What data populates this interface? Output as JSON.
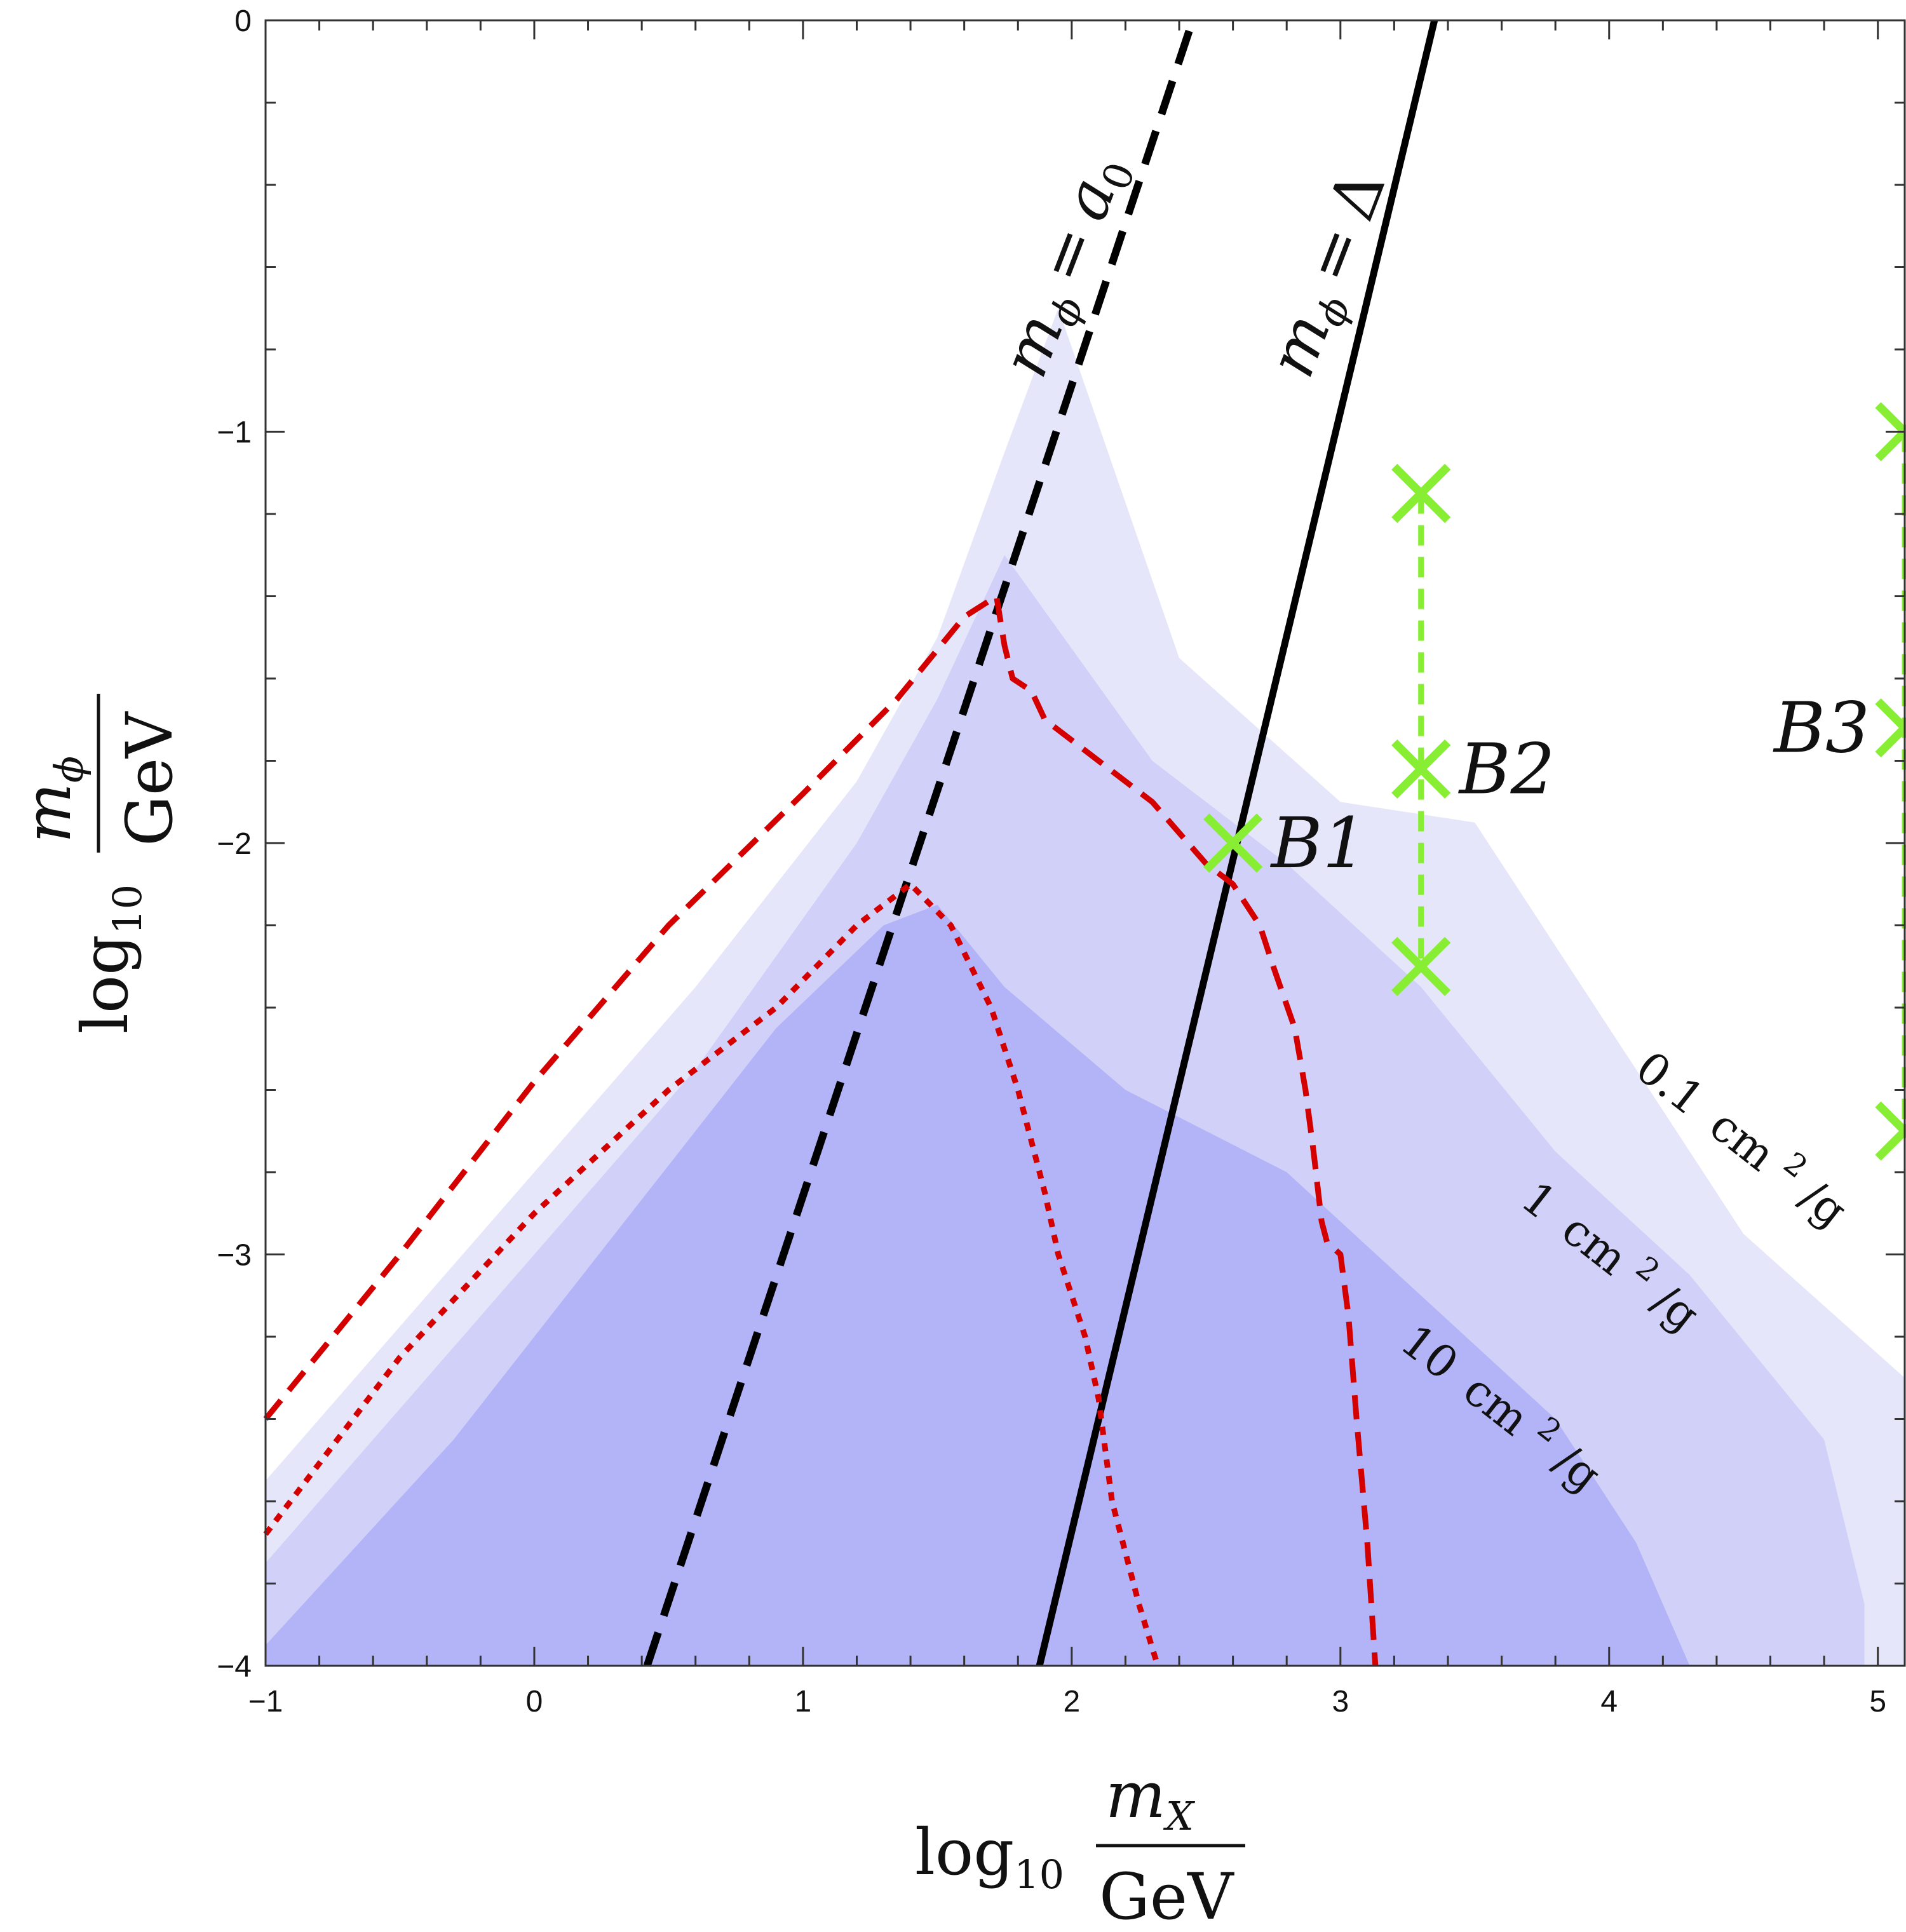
{
  "chart_data": {
    "type": "line",
    "x_axis": {
      "label_prefix": "log",
      "label_sub": "10",
      "label_numerator_main": "m",
      "label_numerator_sub": "X",
      "label_denominator": "GeV",
      "range": [
        -1,
        5.1
      ],
      "ticks": [
        -1,
        0,
        1,
        2,
        3,
        4,
        5
      ],
      "tick_labels": [
        "−1",
        "0",
        "1",
        "2",
        "3",
        "4",
        "5"
      ]
    },
    "y_axis": {
      "label_prefix": "log",
      "label_sub": "10",
      "label_numerator_main": "m",
      "label_numerator_sub": "ϕ",
      "label_denominator": "GeV",
      "range": [
        -4,
        0
      ],
      "ticks": [
        -4,
        -3,
        -2,
        -1,
        0
      ],
      "tick_labels": [
        "−4",
        "−3",
        "−2",
        "−1",
        "0"
      ]
    },
    "grid": false,
    "colors": {
      "region_01": "#e6e6fb",
      "region_1": "#d0d0f8",
      "region_10": "#b3b3f8",
      "red_curves": "#d40000",
      "black_lines": "#000000",
      "benchmarks": "#88ee33"
    },
    "regions": [
      {
        "label_value": "0.1",
        "label_unit": "cm",
        "label_exp": "2",
        "label_tail": "/g",
        "boundary": [
          [
            -1,
            -3.55
          ],
          [
            -0.2,
            -2.95
          ],
          [
            0.6,
            -2.35
          ],
          [
            1.2,
            -1.85
          ],
          [
            1.5,
            -1.5
          ],
          [
            1.75,
            -1.05
          ],
          [
            1.95,
            -0.7
          ],
          [
            2.4,
            -1.55
          ],
          [
            3.0,
            -1.9
          ],
          [
            3.5,
            -1.95
          ],
          [
            4.0,
            -2.45
          ],
          [
            4.5,
            -2.95
          ],
          [
            5.1,
            -3.3
          ],
          [
            5.1,
            -4
          ],
          [
            -1,
            -4
          ]
        ]
      },
      {
        "label_value": "1",
        "label_unit": "cm",
        "label_exp": "2",
        "label_tail": "/g",
        "boundary": [
          [
            -1,
            -3.75
          ],
          [
            -0.2,
            -3.15
          ],
          [
            0.6,
            -2.55
          ],
          [
            1.2,
            -2.0
          ],
          [
            1.5,
            -1.65
          ],
          [
            1.75,
            -1.3
          ],
          [
            2.3,
            -1.8
          ],
          [
            2.8,
            -2.05
          ],
          [
            3.3,
            -2.35
          ],
          [
            3.8,
            -2.75
          ],
          [
            4.3,
            -3.05
          ],
          [
            4.8,
            -3.45
          ],
          [
            4.95,
            -3.85
          ],
          [
            4.95,
            -4
          ],
          [
            -1,
            -4
          ]
        ]
      },
      {
        "label_value": "10",
        "label_unit": "cm",
        "label_exp": "2",
        "label_tail": "/g",
        "boundary": [
          [
            -1,
            -3.95
          ],
          [
            -0.3,
            -3.45
          ],
          [
            0.3,
            -2.95
          ],
          [
            0.9,
            -2.45
          ],
          [
            1.3,
            -2.2
          ],
          [
            1.5,
            -2.15
          ],
          [
            1.75,
            -2.35
          ],
          [
            2.2,
            -2.6
          ],
          [
            2.8,
            -2.8
          ],
          [
            3.3,
            -3.1
          ],
          [
            3.8,
            -3.4
          ],
          [
            4.1,
            -3.7
          ],
          [
            4.3,
            -4.0
          ],
          [
            -1,
            -4
          ]
        ]
      }
    ],
    "series": [
      {
        "name": "m_phi = a_0",
        "style": "black-dashed",
        "points": [
          [
            0.42,
            -4.0
          ],
          [
            2.45,
            0.0
          ]
        ]
      },
      {
        "name": "m_phi = Delta",
        "style": "black-solid",
        "points": [
          [
            1.88,
            -4.0
          ],
          [
            3.35,
            0.0
          ]
        ]
      },
      {
        "style": "red-dashed",
        "points": [
          [
            -1.0,
            -3.4
          ],
          [
            -0.5,
            -3.0
          ],
          [
            0.0,
            -2.58
          ],
          [
            0.5,
            -2.2
          ],
          [
            1.0,
            -1.88
          ],
          [
            1.35,
            -1.65
          ],
          [
            1.6,
            -1.45
          ],
          [
            1.72,
            -1.4
          ],
          [
            1.75,
            -1.52
          ],
          [
            1.78,
            -1.6
          ],
          [
            1.85,
            -1.63
          ],
          [
            1.9,
            -1.7
          ],
          [
            2.1,
            -1.8
          ],
          [
            2.3,
            -1.9
          ],
          [
            2.5,
            -2.05
          ],
          [
            2.6,
            -2.1
          ],
          [
            2.7,
            -2.2
          ],
          [
            2.75,
            -2.3
          ],
          [
            2.83,
            -2.45
          ],
          [
            2.87,
            -2.6
          ],
          [
            2.9,
            -2.75
          ],
          [
            2.93,
            -2.92
          ],
          [
            2.95,
            -2.97
          ],
          [
            3.0,
            -3.0
          ],
          [
            3.03,
            -3.15
          ],
          [
            3.06,
            -3.4
          ],
          [
            3.1,
            -3.7
          ],
          [
            3.13,
            -4.0
          ]
        ]
      },
      {
        "style": "red-dotted",
        "points": [
          [
            -1.0,
            -3.68
          ],
          [
            -0.5,
            -3.25
          ],
          [
            0.0,
            -2.9
          ],
          [
            0.5,
            -2.6
          ],
          [
            0.9,
            -2.4
          ],
          [
            1.2,
            -2.2
          ],
          [
            1.4,
            -2.1
          ],
          [
            1.55,
            -2.2
          ],
          [
            1.7,
            -2.4
          ],
          [
            1.8,
            -2.6
          ],
          [
            1.9,
            -2.85
          ],
          [
            1.95,
            -3.0
          ],
          [
            2.0,
            -3.1
          ],
          [
            2.05,
            -3.2
          ],
          [
            2.1,
            -3.35
          ],
          [
            2.15,
            -3.6
          ],
          [
            2.25,
            -3.85
          ],
          [
            2.32,
            -4.0
          ]
        ]
      }
    ],
    "annotations": {
      "line_a0": {
        "lhs_main": "m",
        "lhs_sub": "ϕ",
        "op": "=",
        "rhs_main": "a",
        "rhs_sub": "0"
      },
      "line_delta": {
        "lhs_main": "m",
        "lhs_sub": "ϕ",
        "op": "=",
        "rhs": "Δ"
      }
    },
    "benchmarks": [
      {
        "label": "B1",
        "x": 2.6,
        "y": [
          -2.0
        ]
      },
      {
        "label": "B2",
        "x": 3.3,
        "y": [
          -1.15,
          -1.82,
          -2.3
        ]
      },
      {
        "label": "B3",
        "x": 5.1,
        "y": [
          -1.0,
          -1.72,
          -2.7
        ]
      }
    ]
  }
}
